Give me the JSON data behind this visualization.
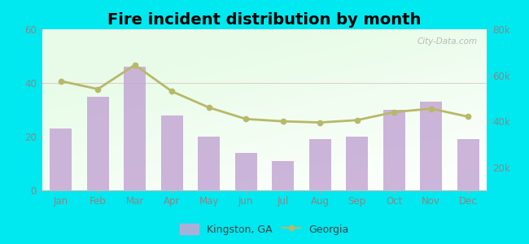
{
  "title": "Fire incident distribution by month",
  "months": [
    "Jan",
    "Feb",
    "Mar",
    "Apr",
    "May",
    "Jun",
    "Jul",
    "Aug",
    "Sep",
    "Oct",
    "Nov",
    "Dec"
  ],
  "kingston_values": [
    23,
    35,
    46,
    28,
    20,
    14,
    11,
    19,
    20,
    30,
    33,
    19
  ],
  "georgia_values": [
    57500,
    54000,
    64500,
    53000,
    46000,
    41000,
    40000,
    39500,
    40500,
    44000,
    45500,
    42000
  ],
  "bar_color": "#c4a8d4",
  "line_color": "#b8b86a",
  "line_marker_color": "#b8b86a",
  "outer_background": "#00e8f0",
  "left_ylim": [
    0,
    60
  ],
  "right_ylim": [
    10000,
    80000
  ],
  "left_yticks": [
    0,
    20,
    40,
    60
  ],
  "right_yticks": [
    20000,
    40000,
    60000,
    80000
  ],
  "right_yticklabels": [
    "20k",
    "40k",
    "60k",
    "80k"
  ],
  "legend_kingston": "Kingston, GA",
  "legend_georgia": "Georgia",
  "watermark": "City-Data.com",
  "tick_color": "#888888",
  "title_fontsize": 14
}
